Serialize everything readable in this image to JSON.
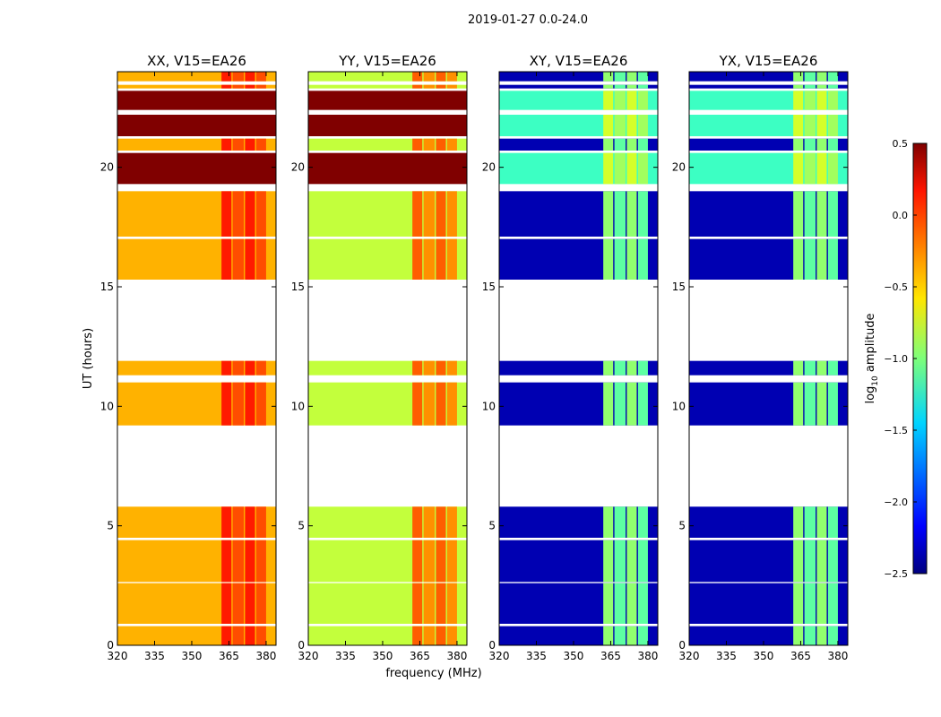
{
  "chart_data": {
    "type": "heatmap",
    "title": "2019-01-27 0.0-24.0",
    "xlabel": "frequency (MHz)",
    "ylabel": "UT (hours)",
    "xlim": [
      320,
      384
    ],
    "ylim": [
      0,
      24
    ],
    "xticks": [
      "320",
      "335",
      "350",
      "365",
      "380"
    ],
    "xtick_values": [
      320,
      335,
      350,
      365,
      380
    ],
    "yticks": [
      "0",
      "5",
      "10",
      "15",
      "20"
    ],
    "ytick_values": [
      0,
      5,
      10,
      15,
      20
    ],
    "band_stripes_mhz": [
      [
        362,
        366
      ],
      [
        366.5,
        371
      ],
      [
        371.5,
        375.5
      ],
      [
        376,
        380
      ]
    ],
    "segments_hours": [
      {
        "t": [
          0,
          0.8
        ],
        "regime": "normal"
      },
      {
        "t": [
          0.9,
          2.6
        ],
        "regime": "normal"
      },
      {
        "t": [
          2.65,
          4.4
        ],
        "regime": "normal"
      },
      {
        "t": [
          4.5,
          5.8
        ],
        "regime": "normal"
      },
      {
        "t": [
          9.2,
          11.0
        ],
        "regime": "normal"
      },
      {
        "t": [
          11.3,
          11.9
        ],
        "regime": "normal"
      },
      {
        "t": [
          15.3,
          17.0
        ],
        "regime": "normal"
      },
      {
        "t": [
          17.1,
          19.0
        ],
        "regime": "normal"
      },
      {
        "t": [
          19.3,
          20.6
        ],
        "regime": "high"
      },
      {
        "t": [
          20.7,
          21.2
        ],
        "regime": "normal"
      },
      {
        "t": [
          21.3,
          22.2
        ],
        "regime": "high"
      },
      {
        "t": [
          22.4,
          23.2
        ],
        "regime": "high"
      },
      {
        "t": [
          23.3,
          23.45
        ],
        "regime": "normal"
      },
      {
        "t": [
          23.6,
          24
        ],
        "regime": "normal"
      }
    ],
    "panels": [
      {
        "title": "XX, V15=EA26",
        "normal": {
          "base": -0.4,
          "band": 0.0
        },
        "high": {
          "base": 0.5,
          "band": 0.5
        }
      },
      {
        "title": "YY, V15=EA26",
        "normal": {
          "base": -0.8,
          "band": -0.2
        },
        "high": {
          "base": 0.5,
          "band": 0.5
        }
      },
      {
        "title": "XY, V15=EA26",
        "normal": {
          "base": -2.35,
          "band": -1.0
        },
        "high": {
          "base": -1.2,
          "band": -0.8
        }
      },
      {
        "title": "YX, V15=EA26",
        "normal": {
          "base": -2.35,
          "band": -1.0
        },
        "high": {
          "base": -1.2,
          "band": -0.8
        }
      }
    ],
    "colorbar": {
      "label": "log",
      "label_sub": "10",
      "label_rest": " amplitude",
      "range": [
        -2.5,
        0.5
      ],
      "ticks": [
        "0.5",
        "0.0",
        "−0.5",
        "−1.0",
        "−1.5",
        "−2.0",
        "−2.5"
      ],
      "tick_values": [
        0.5,
        0.0,
        -0.5,
        -1.0,
        -1.5,
        -2.0,
        -2.5
      ],
      "colormap": "jet"
    }
  }
}
